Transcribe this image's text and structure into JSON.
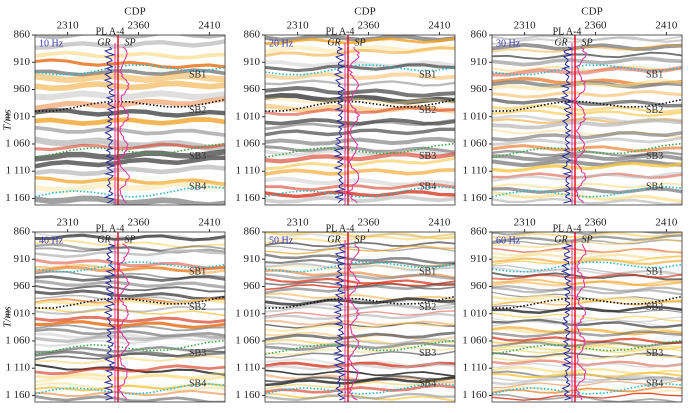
{
  "figure": {
    "x_axis_label": "CDP",
    "y_axis_label": "T/ms",
    "well": "PL A-4",
    "curves": [
      "GR",
      "SP"
    ],
    "horizons": [
      "SB1",
      "SB2",
      "SB3",
      "SB4"
    ],
    "xlim": [
      2287,
      2421
    ],
    "xticks": [
      2310,
      2360,
      2410
    ],
    "ylim": [
      860,
      1172
    ],
    "yticks": [
      860,
      910,
      960,
      {
        "value": 1010,
        "label": "1 010"
      },
      {
        "value": 1060,
        "label": "1 060"
      },
      {
        "value": 1110,
        "label": "1 110"
      },
      {
        "value": 1160,
        "label": "1 160"
      }
    ],
    "panels": [
      {
        "label": "10 Hz"
      },
      {
        "label": "20 Hz"
      },
      {
        "label": "30 Hz"
      },
      {
        "label": "40 Hz"
      },
      {
        "label": "50 Hz"
      },
      {
        "label": "60 Hz"
      }
    ]
  }
}
